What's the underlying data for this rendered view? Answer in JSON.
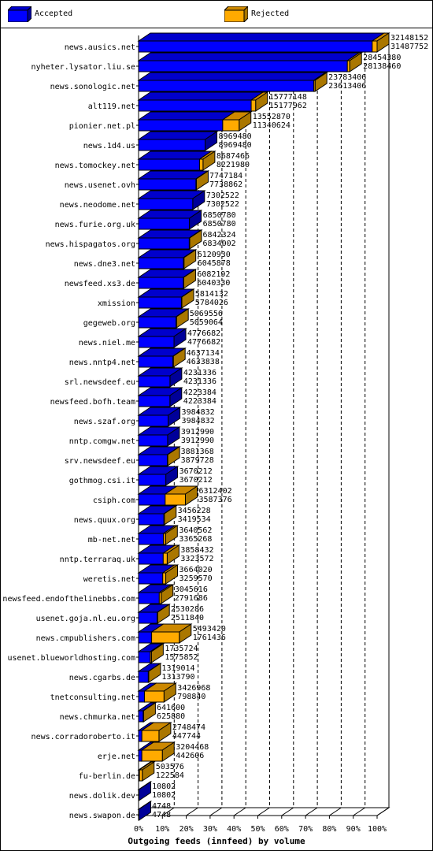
{
  "colors": {
    "accepted_front": "#0000ff",
    "accepted_top": "#0000cc",
    "accepted_side": "#000099",
    "rejected_front": "#ffaa00",
    "rejected_top": "#cc8800",
    "rejected_side": "#aa7700"
  },
  "legend": {
    "accepted_label": "Accepted",
    "rejected_label": "Rejected"
  },
  "chart_data": {
    "type": "bar",
    "orientation": "horizontal",
    "stacked": true,
    "title": "",
    "xlabel": "Outgoing feeds (innfeed) by volume",
    "ylabel": "",
    "xlim": [
      0,
      100
    ],
    "x_ticks": [
      "0%",
      "10%",
      "20%",
      "30%",
      "40%",
      "50%",
      "60%",
      "70%",
      "80%",
      "90%",
      "100%"
    ],
    "max_total": 32148152,
    "legend_position": "top",
    "grid": "vertical dashed",
    "categories": [
      "news.ausics.net",
      "nyheter.lysator.liu.se",
      "news.sonologic.net",
      "alt119.net",
      "pionier.net.pl",
      "news.1d4.us",
      "news.tomockey.net",
      "news.usenet.ovh",
      "news.neodome.net",
      "news.furie.org.uk",
      "news.hispagatos.org",
      "news.dne3.net",
      "newsfeed.xs3.de",
      "xmission",
      "gegeweb.org",
      "news.niel.me",
      "news.nntp4.net",
      "srl.newsdeef.eu",
      "newsfeed.bofh.team",
      "news.szaf.org",
      "nntp.comgw.net",
      "srv.newsdeef.eu",
      "gothmog.csi.it",
      "csiph.com",
      "news.quux.org",
      "mb-net.net",
      "nntp.terraraq.uk",
      "weretis.net",
      "newsfeed.endofthelinebbs.com",
      "usenet.goja.nl.eu.org",
      "news.cmpublishers.com",
      "usenet.blueworldhosting.com",
      "news.cgarbs.de",
      "tnetconsulting.net",
      "news.chmurka.net",
      "news.corradoroberto.it",
      "erje.net",
      "fu-berlin.de",
      "news.dolik.dev",
      "news.swapon.de"
    ],
    "totals": [
      "32148152",
      "28454380",
      "23783406",
      "15777148",
      "13552870",
      "8969480",
      "8687466",
      "7747184",
      "7302522",
      "6850780",
      "6842324",
      "6120930",
      "6082192",
      "5814132",
      "5069556",
      "4776682",
      "4637134",
      "4231336",
      "4223384",
      "3984832",
      "3912990",
      "3881368",
      "3670212",
      "6312402",
      "3456228",
      "3640562",
      "3858432",
      "3664020",
      "3045616",
      "2530286",
      "5493420",
      "1735724",
      "1319014",
      "3426968",
      "641600",
      "2748474",
      "3204468",
      "503576",
      "10802",
      "4748"
    ],
    "accepted": [
      "31487752",
      "28138460",
      "23613406",
      "15177962",
      "11340624",
      "8969480",
      "8221980",
      "7738862",
      "7302522",
      "6850780",
      "6834002",
      "6045878",
      "6040330",
      "5784026",
      "5059064",
      "4776682",
      "4633838",
      "4231336",
      "4223384",
      "3984832",
      "3912990",
      "3879728",
      "3670212",
      "3587376",
      "3419534",
      "3365268",
      "3323572",
      "3259570",
      "2791686",
      "2511840",
      "1761436",
      "1575852",
      "1313790",
      "798840",
      "625880",
      "447744",
      "442606",
      "122584",
      "10802",
      "4748"
    ]
  }
}
